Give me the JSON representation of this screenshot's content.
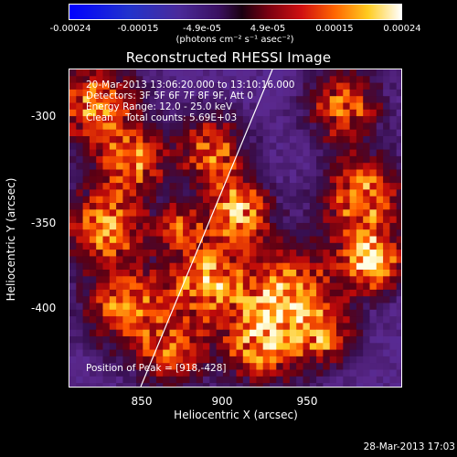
{
  "colorbar": {
    "ticks": [
      "-0.00024",
      "-0.00015",
      "-4.9e-05",
      "4.9e-05",
      "0.00015",
      "0.00024"
    ],
    "units": "(photons cm⁻² s⁻¹ asec⁻²)",
    "range": [
      -0.00024,
      0.00024
    ]
  },
  "title": "Reconstructed RHESSI Image",
  "info": {
    "line1": "20-Mar-2013 13:06:20.000 to 13:10:16.000",
    "line2": "Detectors: 3F 5F 6F 7F 8F 9F, Att 0",
    "line3": "Energy Range: 12.0 - 25.0 keV",
    "line4": "Clean    Total counts: 5.69E+03",
    "peak": "Position of Peak = [918,-428]"
  },
  "axes": {
    "xlabel": "Heliocentric X (arcsec)",
    "ylabel": "Heliocentric Y (arcsec)",
    "xticks": [
      "850",
      "900",
      "950"
    ],
    "yticks": [
      "-300",
      "-350",
      "-400"
    ],
    "xlim": [
      805,
      995
    ],
    "ylim": [
      -450,
      -268
    ]
  },
  "footer": "28-Mar-2013 17:03",
  "colors": {
    "background": "#000000",
    "axis": "#ffffff",
    "limb_line": "#ffffff"
  }
}
